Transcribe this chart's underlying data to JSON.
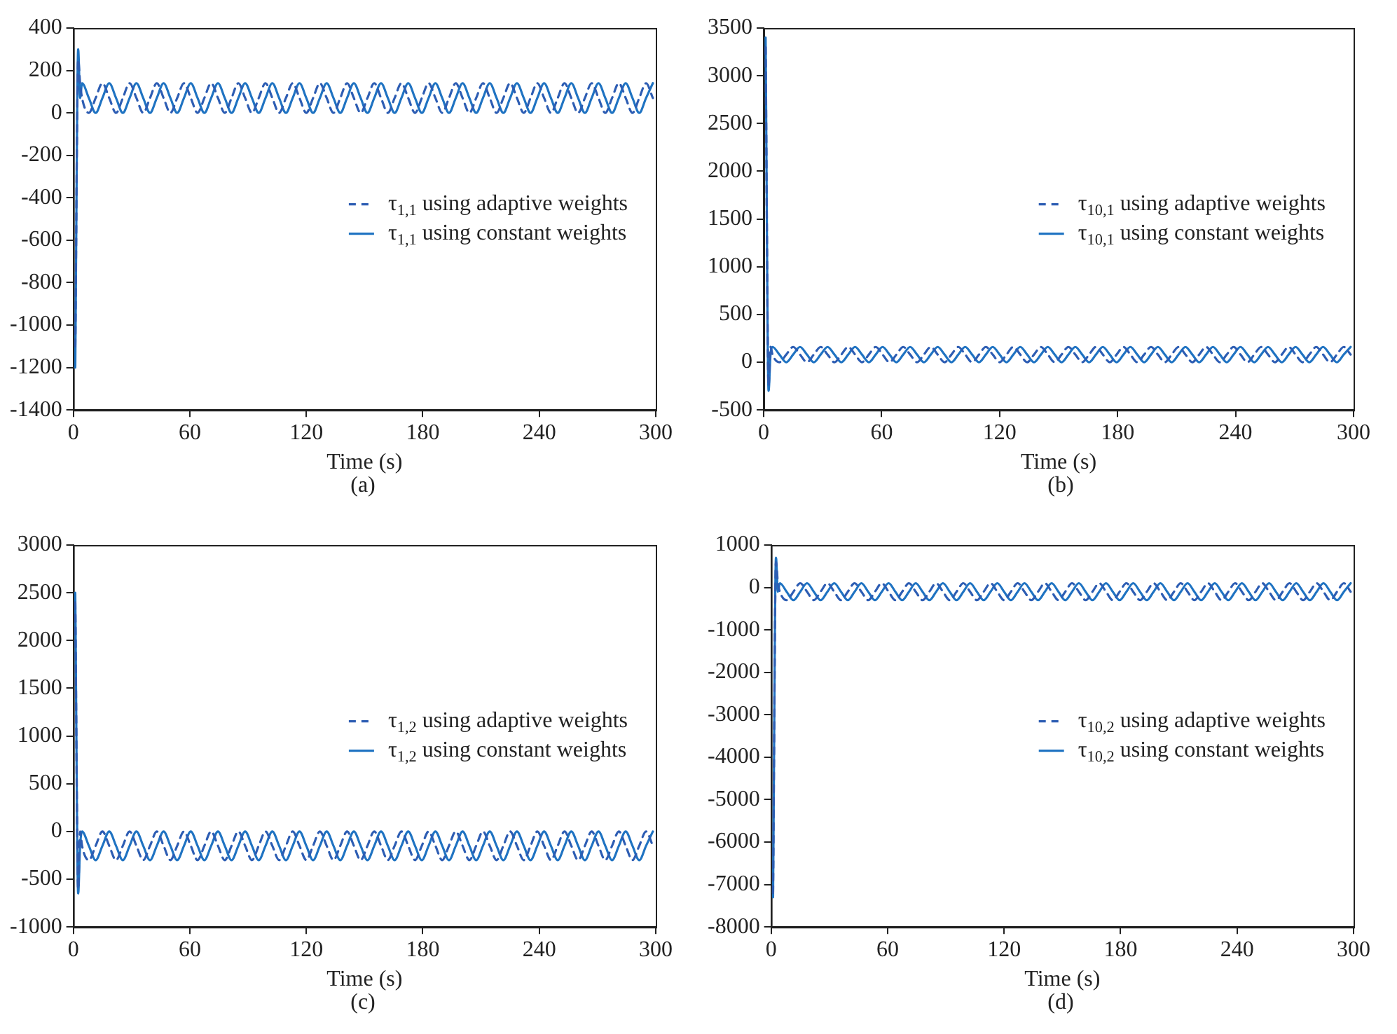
{
  "chart_data": [
    {
      "type": "line",
      "xlabel": "Time (s)",
      "annotations": [
        "(a)"
      ],
      "xlim": [
        0,
        300
      ],
      "xticks": [
        0,
        60,
        120,
        180,
        240,
        300
      ],
      "ylim": [
        -1400,
        400
      ],
      "yticks": [
        -1400,
        -1200,
        -1000,
        -800,
        -600,
        -400,
        -200,
        0,
        200,
        400
      ],
      "legend": "right",
      "grid": false,
      "marker": "none",
      "x": [
        1,
        2.5,
        3.5,
        4.5,
        8,
        11.5,
        15,
        18.5,
        22,
        25.5,
        29,
        32.5,
        36,
        39.5,
        43,
        46.5,
        50,
        53.5,
        57,
        60.5,
        64,
        67.5,
        71,
        74.5,
        78,
        81.5,
        85,
        88.5,
        92,
        95.5,
        99,
        102.5,
        106,
        109.5,
        113,
        116.5,
        120,
        123.5,
        127,
        130.5,
        134,
        137.5,
        141,
        144.5,
        148,
        151.5,
        155,
        158.5,
        162,
        165.5,
        169,
        172.5,
        176,
        179.5,
        183,
        186.5,
        190,
        193.5,
        197,
        200.5,
        204,
        207.5,
        211,
        214.5,
        218,
        221.5,
        225,
        228.5,
        232,
        235.5,
        239,
        242.5,
        246,
        249.5,
        253,
        256.5,
        260,
        263.5,
        267,
        270.5,
        274,
        277.5,
        281,
        284.5,
        288,
        291.5,
        295,
        298.5
      ],
      "series": [
        {
          "name": "τ$_{1,1}$ using adaptive weights",
          "color": "#2d5db3",
          "line_style": "dashed",
          "values": [
            -1100,
            250,
            140,
            70,
            0,
            70,
            140,
            70,
            0,
            70,
            140,
            70,
            0,
            70,
            140,
            70,
            0,
            70,
            140,
            70,
            0,
            70,
            140,
            70,
            0,
            70,
            140,
            70,
            0,
            70,
            140,
            70,
            0,
            70,
            140,
            70,
            0,
            70,
            140,
            70,
            0,
            70,
            140,
            70,
            0,
            70,
            140,
            70,
            0,
            70,
            140,
            70,
            0,
            70,
            140,
            70,
            0,
            70,
            140,
            70,
            0,
            70,
            140,
            70,
            0,
            70,
            140,
            70,
            0,
            70,
            140,
            70,
            0,
            70,
            140,
            70,
            0,
            70,
            140,
            70,
            0,
            70,
            140,
            70,
            0,
            70,
            140,
            70
          ]
        },
        {
          "name": "τ$_{1,1}$ using constant weights",
          "color": "#1f73c2",
          "line_style": "solid",
          "values": [
            -1200,
            300,
            70,
            140,
            70,
            0,
            70,
            140,
            70,
            0,
            70,
            140,
            70,
            0,
            70,
            140,
            70,
            0,
            70,
            140,
            70,
            0,
            70,
            140,
            70,
            0,
            70,
            140,
            70,
            0,
            70,
            140,
            70,
            0,
            70,
            140,
            70,
            0,
            70,
            140,
            70,
            0,
            70,
            140,
            70,
            0,
            70,
            140,
            70,
            0,
            70,
            140,
            70,
            0,
            70,
            140,
            70,
            0,
            70,
            140,
            70,
            0,
            70,
            140,
            70,
            0,
            70,
            140,
            70,
            0,
            70,
            140,
            70,
            0,
            70,
            140,
            70,
            0,
            70,
            140,
            70,
            0,
            70,
            140,
            70,
            0,
            70,
            140
          ]
        }
      ]
    },
    {
      "type": "line",
      "xlabel": "Time (s)",
      "annotations": [
        "(b)"
      ],
      "xlim": [
        0,
        300
      ],
      "xticks": [
        0,
        60,
        120,
        180,
        240,
        300
      ],
      "ylim": [
        -500,
        3500
      ],
      "yticks": [
        -500,
        0,
        500,
        1000,
        1500,
        2000,
        2500,
        3000,
        3500
      ],
      "legend": "right",
      "grid": false,
      "marker": "none",
      "x": [
        1,
        2.5,
        3.5,
        4.5,
        8,
        11.5,
        15,
        18.5,
        22,
        25.5,
        29,
        32.5,
        36,
        39.5,
        43,
        46.5,
        50,
        53.5,
        57,
        60.5,
        64,
        67.5,
        71,
        74.5,
        78,
        81.5,
        85,
        88.5,
        92,
        95.5,
        99,
        102.5,
        106,
        109.5,
        113,
        116.5,
        120,
        123.5,
        127,
        130.5,
        134,
        137.5,
        141,
        144.5,
        148,
        151.5,
        155,
        158.5,
        162,
        165.5,
        169,
        172.5,
        176,
        179.5,
        183,
        186.5,
        190,
        193.5,
        197,
        200.5,
        204,
        207.5,
        211,
        214.5,
        218,
        221.5,
        225,
        228.5,
        232,
        235.5,
        239,
        242.5,
        246,
        249.5,
        253,
        256.5,
        260,
        263.5,
        267,
        270.5,
        274,
        277.5,
        281,
        284.5,
        288,
        291.5,
        295,
        298.5
      ],
      "series": [
        {
          "name": "τ$_{10,1}$ using adaptive weights",
          "color": "#2d5db3",
          "line_style": "dashed",
          "values": [
            3300,
            -250,
            160,
            80,
            0,
            80,
            160,
            80,
            0,
            80,
            160,
            80,
            0,
            80,
            160,
            80,
            0,
            80,
            160,
            80,
            0,
            80,
            160,
            80,
            0,
            80,
            160,
            80,
            0,
            80,
            160,
            80,
            0,
            80,
            160,
            80,
            0,
            80,
            160,
            80,
            0,
            80,
            160,
            80,
            0,
            80,
            160,
            80,
            0,
            80,
            160,
            80,
            0,
            80,
            160,
            80,
            0,
            80,
            160,
            80,
            0,
            80,
            160,
            80,
            0,
            80,
            160,
            80,
            0,
            80,
            160,
            80,
            0,
            80,
            160,
            80,
            0,
            80,
            160,
            80,
            0,
            80,
            160,
            80,
            0,
            80,
            160,
            80
          ]
        },
        {
          "name": "τ$_{10,1}$ using constant weights",
          "color": "#1f73c2",
          "line_style": "solid",
          "values": [
            3400,
            -300,
            80,
            160,
            80,
            0,
            80,
            160,
            80,
            0,
            80,
            160,
            80,
            0,
            80,
            160,
            80,
            0,
            80,
            160,
            80,
            0,
            80,
            160,
            80,
            0,
            80,
            160,
            80,
            0,
            80,
            160,
            80,
            0,
            80,
            160,
            80,
            0,
            80,
            160,
            80,
            0,
            80,
            160,
            80,
            0,
            80,
            160,
            80,
            0,
            80,
            160,
            80,
            0,
            80,
            160,
            80,
            0,
            80,
            160,
            80,
            0,
            80,
            160,
            80,
            0,
            80,
            160,
            80,
            0,
            80,
            160,
            80,
            0,
            80,
            160,
            80,
            0,
            80,
            160,
            80,
            0,
            80,
            160,
            80,
            0,
            80,
            160
          ]
        }
      ]
    },
    {
      "type": "line",
      "xlabel": "Time (s)",
      "annotations": [
        "(c)"
      ],
      "xlim": [
        0,
        300
      ],
      "xticks": [
        0,
        60,
        120,
        180,
        240,
        300
      ],
      "ylim": [
        -1000,
        3000
      ],
      "yticks": [
        -1000,
        -500,
        0,
        500,
        1000,
        1500,
        2000,
        2500,
        3000
      ],
      "legend": "right",
      "grid": false,
      "marker": "none",
      "x": [
        1,
        2.5,
        3.5,
        4.5,
        8,
        11.5,
        15,
        18.5,
        22,
        25.5,
        29,
        32.5,
        36,
        39.5,
        43,
        46.5,
        50,
        53.5,
        57,
        60.5,
        64,
        67.5,
        71,
        74.5,
        78,
        81.5,
        85,
        88.5,
        92,
        95.5,
        99,
        102.5,
        106,
        109.5,
        113,
        116.5,
        120,
        123.5,
        127,
        130.5,
        134,
        137.5,
        141,
        144.5,
        148,
        151.5,
        155,
        158.5,
        162,
        165.5,
        169,
        172.5,
        176,
        179.5,
        183,
        186.5,
        190,
        193.5,
        197,
        200.5,
        204,
        207.5,
        211,
        214.5,
        218,
        221.5,
        225,
        228.5,
        232,
        235.5,
        239,
        242.5,
        246,
        249.5,
        253,
        256.5,
        260,
        263.5,
        267,
        270.5,
        274,
        277.5,
        281,
        284.5,
        288,
        291.5,
        295,
        298.5
      ],
      "series": [
        {
          "name": "τ$_{1,2}$ using adaptive weights",
          "color": "#2d5db3",
          "line_style": "dashed",
          "values": [
            2400,
            -600,
            0,
            -150,
            -300,
            -150,
            0,
            -150,
            -300,
            -150,
            0,
            -150,
            -300,
            -150,
            0,
            -150,
            -300,
            -150,
            0,
            -150,
            -300,
            -150,
            0,
            -150,
            -300,
            -150,
            0,
            -150,
            -300,
            -150,
            0,
            -150,
            -300,
            -150,
            0,
            -150,
            -300,
            -150,
            0,
            -150,
            -300,
            -150,
            0,
            -150,
            -300,
            -150,
            0,
            -150,
            -300,
            -150,
            0,
            -150,
            -300,
            -150,
            0,
            -150,
            -300,
            -150,
            0,
            -150,
            -300,
            -150,
            0,
            -150,
            -300,
            -150,
            0,
            -150,
            -300,
            -150,
            0,
            -150,
            -300,
            -150,
            0,
            -150,
            -300,
            -150,
            0,
            -150,
            -300,
            -150,
            0,
            -150,
            -300,
            -150,
            0,
            -150
          ]
        },
        {
          "name": "τ$_{1,2}$ using constant weights",
          "color": "#1f73c2",
          "line_style": "solid",
          "values": [
            2500,
            -650,
            -150,
            0,
            -150,
            -300,
            -150,
            0,
            -150,
            -300,
            -150,
            0,
            -150,
            -300,
            -150,
            0,
            -150,
            -300,
            -150,
            0,
            -150,
            -300,
            -150,
            0,
            -150,
            -300,
            -150,
            0,
            -150,
            -300,
            -150,
            0,
            -150,
            -300,
            -150,
            0,
            -150,
            -300,
            -150,
            0,
            -150,
            -300,
            -150,
            0,
            -150,
            -300,
            -150,
            0,
            -150,
            -300,
            -150,
            0,
            -150,
            -300,
            -150,
            0,
            -150,
            -300,
            -150,
            0,
            -150,
            -300,
            -150,
            0,
            -150,
            -300,
            -150,
            0,
            -150,
            -300,
            -150,
            0,
            -150,
            -300,
            -150,
            0,
            -150,
            -300,
            -150,
            0,
            -150,
            -300,
            -150,
            0,
            -150,
            -300,
            -150,
            0
          ]
        }
      ]
    },
    {
      "type": "line",
      "xlabel": "Time (s)",
      "annotations": [
        "(d)"
      ],
      "xlim": [
        0,
        300
      ],
      "xticks": [
        0,
        60,
        120,
        180,
        240,
        300
      ],
      "ylim": [
        -8000,
        1000
      ],
      "yticks": [
        -8000,
        -7000,
        -6000,
        -5000,
        -4000,
        -3000,
        -2000,
        -1000,
        0,
        1000
      ],
      "legend": "right",
      "grid": false,
      "marker": "none",
      "x": [
        1,
        2.5,
        3.5,
        4.5,
        8,
        11.5,
        15,
        18.5,
        22,
        25.5,
        29,
        32.5,
        36,
        39.5,
        43,
        46.5,
        50,
        53.5,
        57,
        60.5,
        64,
        67.5,
        71,
        74.5,
        78,
        81.5,
        85,
        88.5,
        92,
        95.5,
        99,
        102.5,
        106,
        109.5,
        113,
        116.5,
        120,
        123.5,
        127,
        130.5,
        134,
        137.5,
        141,
        144.5,
        148,
        151.5,
        155,
        158.5,
        162,
        165.5,
        169,
        172.5,
        176,
        179.5,
        183,
        186.5,
        190,
        193.5,
        197,
        200.5,
        204,
        207.5,
        211,
        214.5,
        218,
        221.5,
        225,
        228.5,
        232,
        235.5,
        239,
        242.5,
        246,
        249.5,
        253,
        256.5,
        260,
        263.5,
        267,
        270.5,
        274,
        277.5,
        281,
        284.5,
        288,
        291.5,
        295,
        298.5
      ],
      "series": [
        {
          "name": "τ$_{10,2}$ using adaptive weights",
          "color": "#2d5db3",
          "line_style": "dashed",
          "values": [
            -7200,
            600,
            100,
            -100,
            -300,
            -100,
            100,
            -100,
            -300,
            -100,
            100,
            -100,
            -300,
            -100,
            100,
            -100,
            -300,
            -100,
            100,
            -100,
            -300,
            -100,
            100,
            -100,
            -300,
            -100,
            100,
            -100,
            -300,
            -100,
            100,
            -100,
            -300,
            -100,
            100,
            -100,
            -300,
            -100,
            100,
            -100,
            -300,
            -100,
            100,
            -100,
            -300,
            -100,
            100,
            -100,
            -300,
            -100,
            100,
            -100,
            -300,
            -100,
            100,
            -100,
            -300,
            -100,
            100,
            -100,
            -300,
            -100,
            100,
            -100,
            -300,
            -100,
            100,
            -100,
            -300,
            -100,
            100,
            -100,
            -300,
            -100,
            100,
            -100,
            -300,
            -100,
            100,
            -100,
            -300,
            -100,
            100,
            -100,
            -300,
            -100,
            100,
            -100
          ]
        },
        {
          "name": "τ$_{10,2}$ using constant weights",
          "color": "#1f73c2",
          "line_style": "solid",
          "values": [
            -7300,
            700,
            -100,
            100,
            -100,
            -300,
            -100,
            100,
            -100,
            -300,
            -100,
            100,
            -100,
            -300,
            -100,
            100,
            -100,
            -300,
            -100,
            100,
            -100,
            -300,
            -100,
            100,
            -100,
            -300,
            -100,
            100,
            -100,
            -300,
            -100,
            100,
            -100,
            -300,
            -100,
            100,
            -100,
            -300,
            -100,
            100,
            -100,
            -300,
            -100,
            100,
            -100,
            -300,
            -100,
            100,
            -100,
            -300,
            -100,
            100,
            -100,
            -300,
            -100,
            100,
            -100,
            -300,
            -100,
            100,
            -100,
            -300,
            -100,
            100,
            -100,
            -300,
            -100,
            100,
            -100,
            -300,
            -100,
            100,
            -100,
            -300,
            -100,
            100,
            -100,
            -300,
            -100,
            100,
            -100,
            -300,
            -100,
            100,
            -100,
            -300,
            -100,
            100
          ]
        }
      ]
    }
  ]
}
